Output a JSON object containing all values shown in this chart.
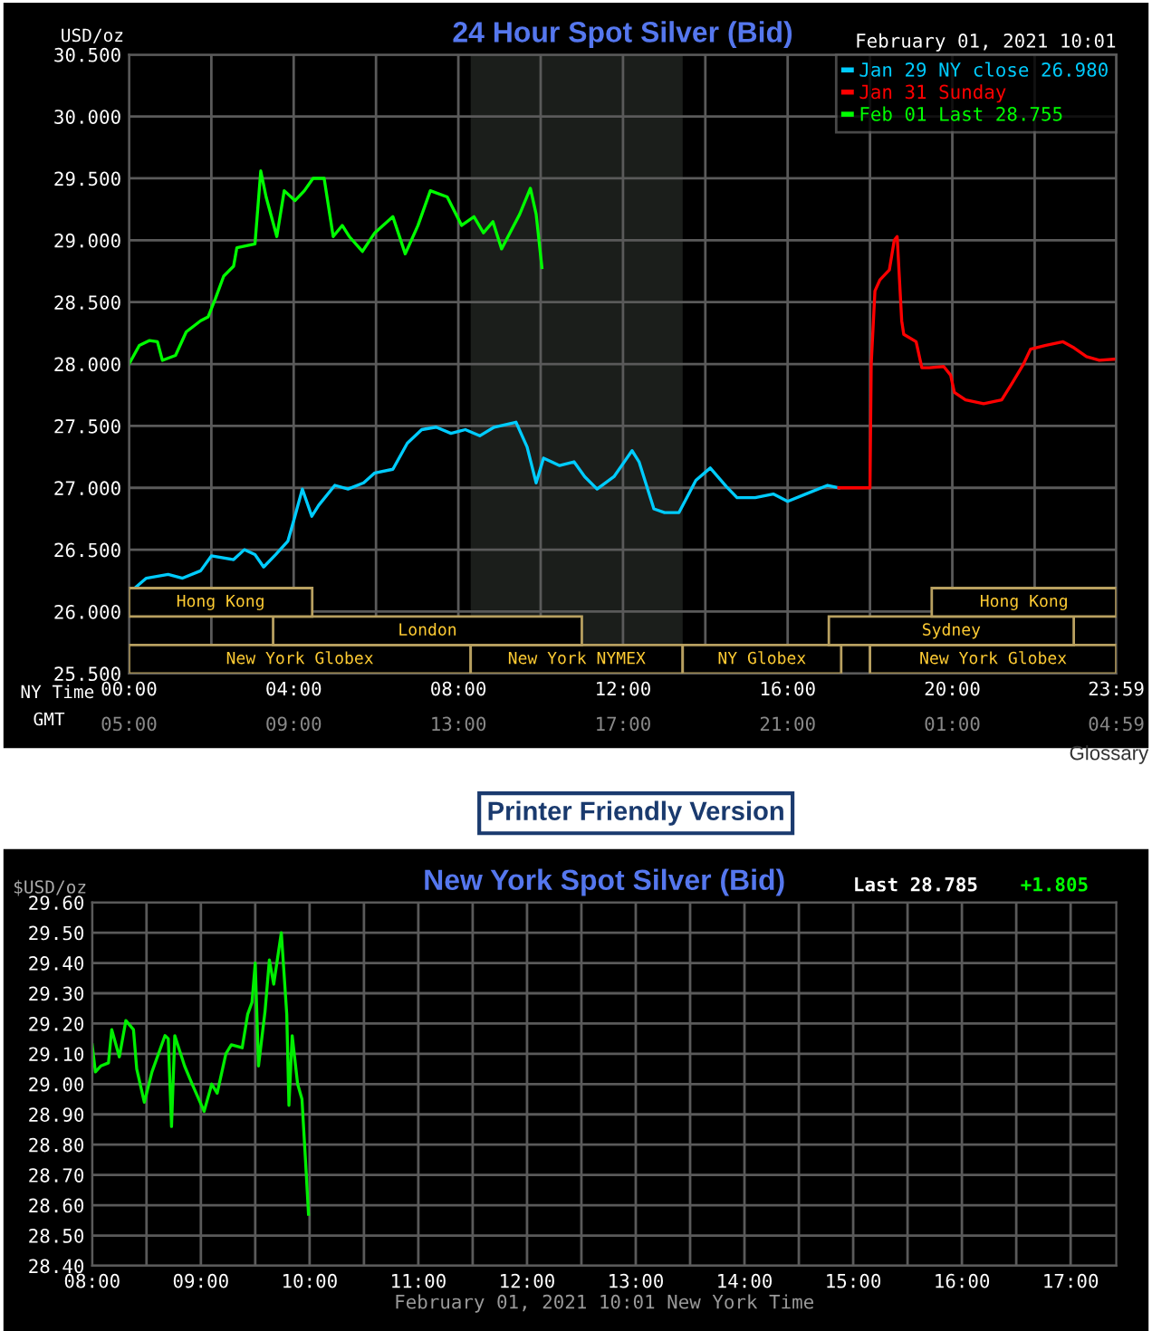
{
  "chart_data": [
    {
      "type": "line",
      "title": "24 Hour Spot Silver (Bid)",
      "ylabel": "USD/oz",
      "xlabel": "NY Time",
      "x2label": "GMT",
      "annotations": [
        "February 01, 2021 10:01",
        "Glossary",
        "Printer Friendly Version"
      ],
      "legend": "top right",
      "grid": true,
      "xlim": [
        0,
        23.983
      ],
      "xticks": [
        {
          "value": 0,
          "label": "00:00"
        },
        {
          "value": 2,
          "label": null
        },
        {
          "value": 4,
          "label": "04:00"
        },
        {
          "value": 6,
          "label": null
        },
        {
          "value": 8,
          "label": "08:00"
        },
        {
          "value": 10,
          "label": null
        },
        {
          "value": 12,
          "label": "12:00"
        },
        {
          "value": 14,
          "label": null
        },
        {
          "value": 16,
          "label": "16:00"
        },
        {
          "value": 18,
          "label": null
        },
        {
          "value": 20,
          "label": "20:00"
        },
        {
          "value": 22,
          "label": null
        },
        {
          "value": 23.983,
          "label": "23:59"
        }
      ],
      "x2lim": [
        "2021-02-01T05:00",
        "2021-02-02T04:59"
      ],
      "x2ticks": [
        {
          "value": "2021-02-01T05:00",
          "label": "05:00"
        },
        {
          "value": "2021-02-01T09:00",
          "label": "09:00"
        },
        {
          "value": "2021-02-01T13:00",
          "label": "13:00"
        },
        {
          "value": "2021-02-01T17:00",
          "label": "17:00"
        },
        {
          "value": "2021-02-01T21:00",
          "label": "21:00"
        },
        {
          "value": "2021-02-02T01:00",
          "label": "01:00"
        },
        {
          "value": "2021-02-02T04:59",
          "label": "04:59"
        }
      ],
      "ylim": [
        25.5,
        30.5
      ],
      "yticks": [
        {
          "value": 25.5,
          "label": "25.500"
        },
        {
          "value": 26,
          "label": "26.000"
        },
        {
          "value": 26.5,
          "label": "26.500"
        },
        {
          "value": 27,
          "label": "27.000"
        },
        {
          "value": 27.5,
          "label": "27.500"
        },
        {
          "value": 28,
          "label": "28.000"
        },
        {
          "value": 28.5,
          "label": "28.500"
        },
        {
          "value": 29,
          "label": "29.000"
        },
        {
          "value": 29.5,
          "label": "29.500"
        },
        {
          "value": 30,
          "label": "30.000"
        },
        {
          "value": 30.5,
          "label": "30.500"
        }
      ],
      "bands": [
        {
          "axis": "x",
          "from": 8.3,
          "to": 13.45,
          "label": null,
          "color": "#1b1e1b"
        },
        {
          "axis": "x",
          "from": 0,
          "to": 8.3,
          "label": "New York Globex",
          "color": "#b8a060"
        },
        {
          "axis": "x",
          "from": 8.3,
          "to": 13.45,
          "label": "New York NYMEX",
          "color": "#b8a060"
        },
        {
          "axis": "x",
          "from": 13.45,
          "to": 17.3,
          "label": "NY Globex",
          "color": "#b8a060"
        },
        {
          "axis": "x",
          "from": 18.0,
          "to": 23.983,
          "label": "New York Globex",
          "color": "#b8a060"
        },
        {
          "axis": "x",
          "from": 3.5,
          "to": 11.0,
          "label": "London",
          "color": "#b8a060"
        },
        {
          "axis": "x",
          "from": 17.0,
          "to": 22.95,
          "label": "Sydney",
          "color": "#b8a060"
        },
        {
          "axis": "x",
          "from": 0,
          "to": 4.45,
          "label": "Hong Kong",
          "color": "#b8a060"
        },
        {
          "axis": "x",
          "from": 19.5,
          "to": 23.983,
          "label": "Hong Kong",
          "color": "#b8a060"
        }
      ],
      "series": [
        {
          "name": "Jan 29 NY close 26.980",
          "color": "#00ccff",
          "x": [
            0,
            0.42,
            0.95,
            1.3,
            1.74,
            2.0,
            2.54,
            2.8,
            3.06,
            3.27,
            3.56,
            3.86,
            4.03,
            4.21,
            4.44,
            4.61,
            5.0,
            5.32,
            5.7,
            5.97,
            6.41,
            6.76,
            7.11,
            7.46,
            7.82,
            8.17,
            8.52,
            8.87,
            9.4,
            9.67,
            9.89,
            10.07,
            10.46,
            10.81,
            11.07,
            11.37,
            11.78,
            12.22,
            12.39,
            12.75,
            13.01,
            13.36,
            13.77,
            14.12,
            14.51,
            14.77,
            15.21,
            15.65,
            16.0,
            16.44,
            16.97,
            17.24
          ],
          "values": [
            26.15,
            26.27,
            26.3,
            26.27,
            26.33,
            26.45,
            26.42,
            26.5,
            26.46,
            26.36,
            26.46,
            26.57,
            26.77,
            26.99,
            26.77,
            26.86,
            27.02,
            26.99,
            27.04,
            27.12,
            27.15,
            27.36,
            27.47,
            27.49,
            27.44,
            27.47,
            27.42,
            27.49,
            27.53,
            27.33,
            27.04,
            27.24,
            27.18,
            27.21,
            27.09,
            26.99,
            27.09,
            27.3,
            27.21,
            26.83,
            26.8,
            26.8,
            27.06,
            27.16,
            27.01,
            26.92,
            26.92,
            26.95,
            26.89,
            26.95,
            27.02,
            27.0
          ]
        },
        {
          "name": "Jan 31 Sunday",
          "color": "#ff0000",
          "x": [
            17.24,
            18.0,
            18.03,
            18.12,
            18.24,
            18.47,
            18.59,
            18.66,
            18.77,
            18.82,
            19.12,
            19.26,
            19.44,
            19.79,
            19.96,
            20.05,
            20.32,
            20.76,
            21.2,
            21.46,
            21.73,
            21.9,
            22.25,
            22.69,
            22.96,
            23.26,
            23.57,
            23.983
          ],
          "values": [
            27.0,
            27.0,
            28.0,
            28.59,
            28.68,
            28.76,
            29.0,
            29.03,
            28.35,
            28.24,
            28.18,
            27.97,
            27.97,
            27.98,
            27.91,
            27.77,
            27.71,
            27.68,
            27.71,
            27.85,
            28.0,
            28.12,
            28.15,
            28.18,
            28.13,
            28.06,
            28.03,
            28.04
          ]
        },
        {
          "name": "Feb 01 Last 28.755",
          "color": "#00ff00",
          "x": [
            0,
            0.25,
            0.5,
            0.69,
            0.81,
            1.13,
            1.39,
            1.74,
            1.92,
            2.1,
            2.3,
            2.54,
            2.62,
            3.06,
            3.2,
            3.33,
            3.59,
            3.77,
            4.03,
            4.26,
            4.47,
            4.74,
            4.96,
            5.18,
            5.35,
            5.67,
            5.97,
            6.41,
            6.71,
            7.02,
            7.32,
            7.73,
            8.08,
            8.38,
            8.61,
            8.84,
            9.05,
            9.49,
            9.75,
            9.89,
            10.03
          ],
          "values": [
            28.0,
            28.15,
            28.19,
            28.18,
            28.03,
            28.07,
            28.26,
            28.35,
            28.38,
            28.53,
            28.71,
            28.79,
            28.94,
            28.97,
            29.56,
            29.35,
            29.03,
            29.4,
            29.32,
            29.4,
            29.5,
            29.5,
            29.03,
            29.12,
            29.03,
            28.91,
            29.06,
            29.19,
            28.89,
            29.12,
            29.4,
            29.35,
            29.12,
            29.19,
            29.06,
            29.15,
            28.93,
            29.21,
            29.42,
            29.21,
            28.78
          ]
        }
      ]
    },
    {
      "type": "line",
      "title": "New York Spot Silver (Bid)",
      "ylabel": "$USD/oz",
      "xlabel": "February 01, 2021 10:01 New York Time",
      "annotations": [
        "Last 28.785",
        "+1.805"
      ],
      "grid": true,
      "xlim": [
        8,
        17.42
      ],
      "xticks": [
        {
          "value": 8,
          "label": "08:00"
        },
        {
          "value": 8.5,
          "label": null
        },
        {
          "value": 9,
          "label": "09:00"
        },
        {
          "value": 9.5,
          "label": null
        },
        {
          "value": 10,
          "label": "10:00"
        },
        {
          "value": 10.5,
          "label": null
        },
        {
          "value": 11,
          "label": "11:00"
        },
        {
          "value": 11.5,
          "label": null
        },
        {
          "value": 12,
          "label": "12:00"
        },
        {
          "value": 12.5,
          "label": null
        },
        {
          "value": 13,
          "label": "13:00"
        },
        {
          "value": 13.5,
          "label": null
        },
        {
          "value": 14,
          "label": "14:00"
        },
        {
          "value": 14.5,
          "label": null
        },
        {
          "value": 15,
          "label": "15:00"
        },
        {
          "value": 15.5,
          "label": null
        },
        {
          "value": 16,
          "label": "16:00"
        },
        {
          "value": 16.5,
          "label": null
        },
        {
          "value": 17,
          "label": "17:00"
        }
      ],
      "ylim": [
        28.4,
        29.6
      ],
      "yticks": [
        {
          "value": 28.4,
          "label": "28.40"
        },
        {
          "value": 28.5,
          "label": "28.50"
        },
        {
          "value": 28.6,
          "label": "28.60"
        },
        {
          "value": 28.7,
          "label": "28.70"
        },
        {
          "value": 28.8,
          "label": "28.80"
        },
        {
          "value": 28.9,
          "label": "28.90"
        },
        {
          "value": 29.0,
          "label": "29.00"
        },
        {
          "value": 29.1,
          "label": "29.10"
        },
        {
          "value": 29.2,
          "label": "29.20"
        },
        {
          "value": 29.3,
          "label": "29.30"
        },
        {
          "value": 29.4,
          "label": "29.40"
        },
        {
          "value": 29.5,
          "label": "29.50"
        },
        {
          "value": 29.6,
          "label": "29.60"
        }
      ],
      "series": [
        {
          "color": "#00ee00",
          "x": [
            8.0,
            8.03,
            8.08,
            8.15,
            8.18,
            8.25,
            8.31,
            8.38,
            8.41,
            8.48,
            8.55,
            8.62,
            8.67,
            8.7,
            8.73,
            8.76,
            8.85,
            8.92,
            9.03,
            9.1,
            9.15,
            9.23,
            9.28,
            9.38,
            9.43,
            9.47,
            9.5,
            9.53,
            9.59,
            9.63,
            9.67,
            9.74,
            9.79,
            9.81,
            9.84,
            9.89,
            9.93,
            9.97,
            9.99
          ],
          "values": [
            29.13,
            29.04,
            29.06,
            29.07,
            29.18,
            29.09,
            29.21,
            29.18,
            29.05,
            28.94,
            29.04,
            29.11,
            29.16,
            29.15,
            28.86,
            29.16,
            29.06,
            29.0,
            28.91,
            29.0,
            28.97,
            29.1,
            29.13,
            29.12,
            29.23,
            29.27,
            29.4,
            29.06,
            29.24,
            29.41,
            29.33,
            29.5,
            29.23,
            28.93,
            29.16,
            29.0,
            28.95,
            28.7,
            28.57
          ]
        }
      ]
    }
  ]
}
